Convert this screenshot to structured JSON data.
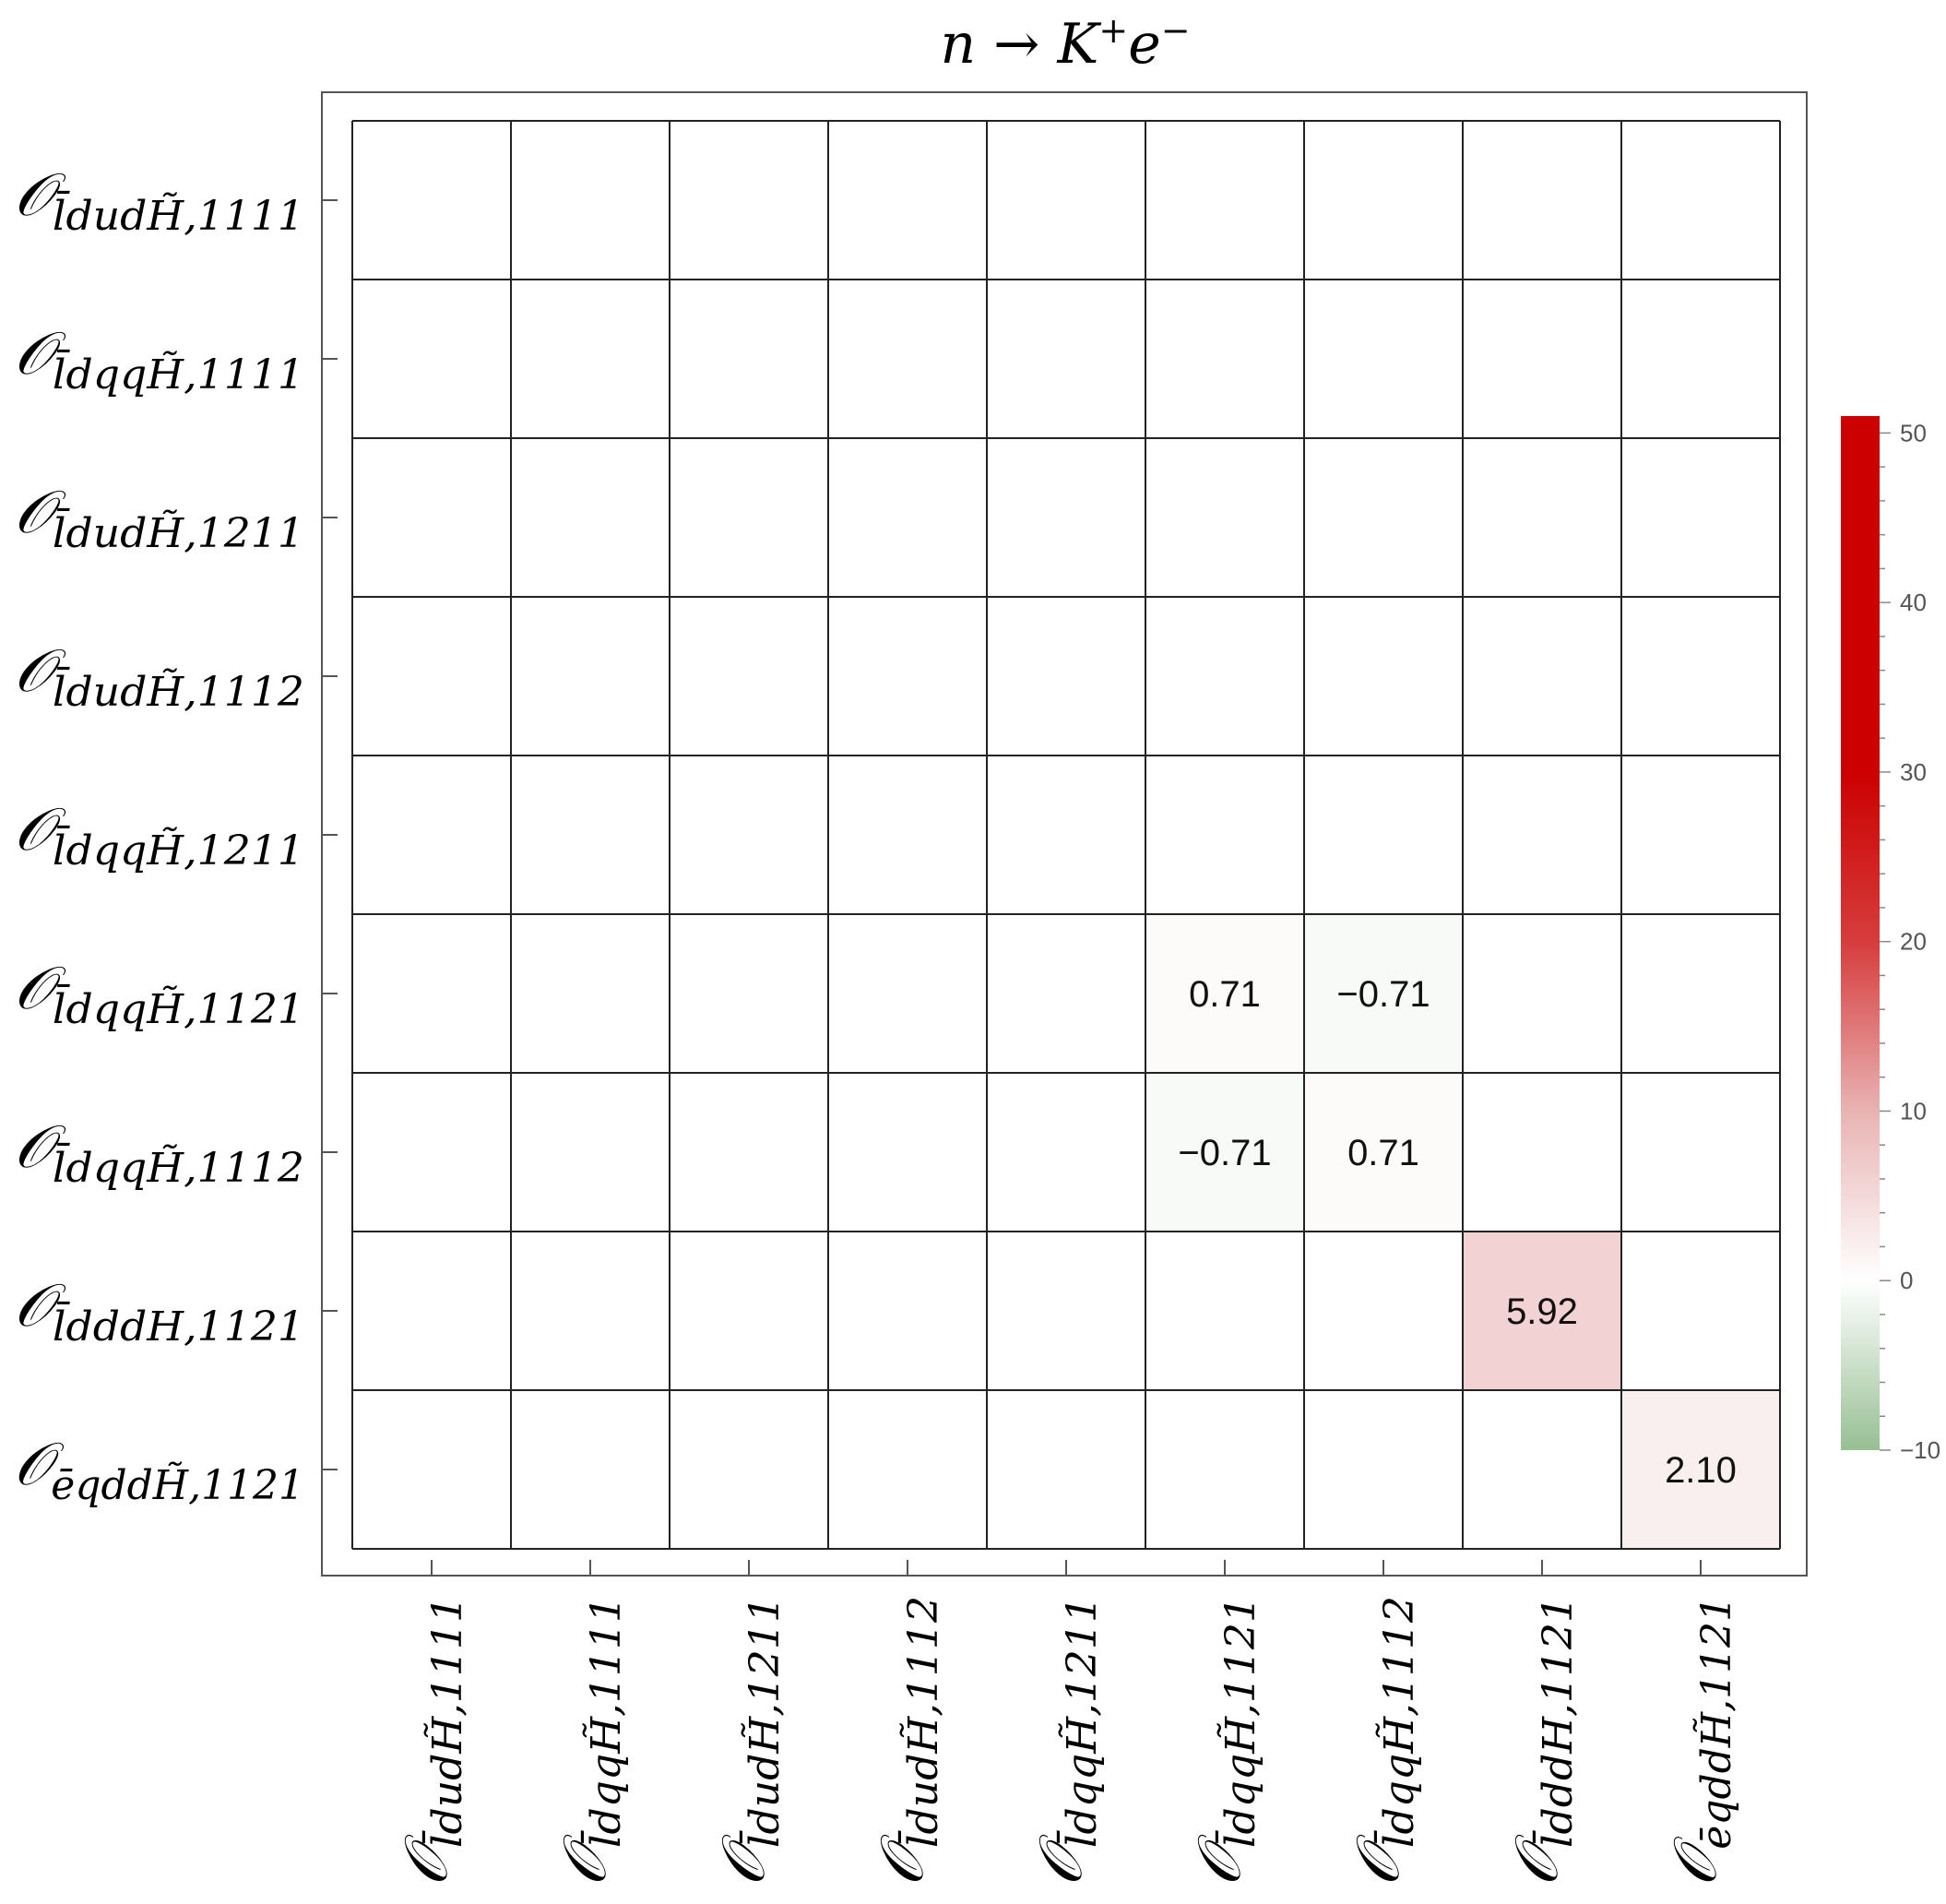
{
  "chart_data": {
    "type": "heatmap",
    "title": "n → K⁺e⁻",
    "title_parts": {
      "pre": "n → K",
      "sup1": "+",
      "mid": "e",
      "sup2": "−"
    },
    "xlabel": "",
    "ylabel": "",
    "operators": [
      {
        "sym": "𝒪",
        "sub": "l̄dudH̃,1111"
      },
      {
        "sym": "𝒪",
        "sub": "l̄dqqH̃,1111"
      },
      {
        "sym": "𝒪",
        "sub": "l̄dudH̃,1211"
      },
      {
        "sym": "𝒪",
        "sub": "l̄dudH̃,1112"
      },
      {
        "sym": "𝒪",
        "sub": "l̄dqqH̃,1211"
      },
      {
        "sym": "𝒪",
        "sub": "l̄dqqH̃,1121"
      },
      {
        "sym": "𝒪",
        "sub": "l̄dqqH̃,1112"
      },
      {
        "sym": "𝒪",
        "sub": "l̄dddH,1121"
      },
      {
        "sym": "𝒪",
        "sub": "ēqddH̃,1121"
      }
    ],
    "cells": [
      {
        "row": 5,
        "col": 5,
        "value": 0.71,
        "label": "0.71"
      },
      {
        "row": 5,
        "col": 6,
        "value": -0.71,
        "label": "−0.71"
      },
      {
        "row": 6,
        "col": 5,
        "value": -0.71,
        "label": "−0.71"
      },
      {
        "row": 6,
        "col": 6,
        "value": 0.71,
        "label": "0.71"
      },
      {
        "row": 7,
        "col": 7,
        "value": 5.92,
        "label": "5.92"
      },
      {
        "row": 8,
        "col": 8,
        "value": 2.1,
        "label": "2.10"
      }
    ],
    "colorbar": {
      "range": [
        -10,
        51
      ],
      "ticks": [
        -10,
        0,
        10,
        20,
        30,
        40,
        50
      ],
      "tick_labels": [
        "−10",
        "0",
        "10",
        "20",
        "30",
        "40",
        "50"
      ],
      "colors": {
        "min": "#97bf93",
        "zero": "#ffffff",
        "mid": "#e9b3b3",
        "max": "#cc0000"
      }
    },
    "grid": true,
    "legend": "right"
  }
}
